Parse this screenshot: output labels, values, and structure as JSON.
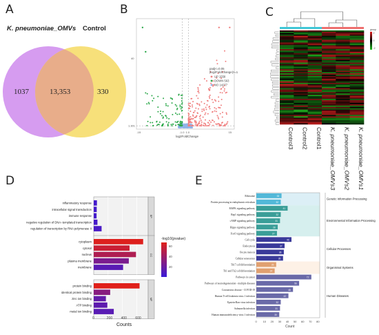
{
  "panel_labels": {
    "a": "A",
    "b": "B",
    "c": "C",
    "d": "D",
    "e": "E"
  },
  "colors": {
    "venn_left": "#d69cf0",
    "venn_right": "#f7e07a",
    "venn_overlap": "#e8ad8a",
    "volcano_up": "#f08080",
    "volcano_down": "#2ca84a",
    "volcano_ns": "#8fb4e8",
    "heat_low": "#20c020",
    "heat_mid": "#000000",
    "heat_high": "#e02020",
    "group_control": "#40c8d8",
    "group_treat": "#f07070",
    "go_grad_high": "#e0201a",
    "go_grad_low": "#3a1ad8"
  },
  "chart_data": [
    {
      "panel": "A",
      "type": "venn",
      "sets": [
        "K. pneumoniae_OMVs",
        "Control"
      ],
      "only_left": "1037",
      "overlap": "13,353",
      "only_right": "330"
    },
    {
      "panel": "B",
      "type": "scatter",
      "subtype": "volcano",
      "xlabel": "log2FoldChange",
      "ylabel": "",
      "xlim": [
        -16,
        16
      ],
      "legend_title": [
        "padj<=0.05",
        "|log2FoldChange|>=1"
      ],
      "legend": [
        {
          "name": "UP 1558",
          "color": "#f08080"
        },
        {
          "name": "DOWN 563",
          "color": "#2ca84a"
        },
        {
          "name": "NO 14277",
          "color": "#8fb4e8"
        }
      ],
      "y_tick_labels": [
        "40",
        "1.301"
      ],
      "x_tick_labels": [
        "-15",
        "-1.0",
        "1.0",
        "15"
      ]
    },
    {
      "panel": "C",
      "type": "heatmap",
      "columns": [
        "Control3",
        "Control2",
        "Control1",
        "K. pneumoniae_OMVs3",
        "K. pneumoniae_OMVs2",
        "K. pneumoniae_OMVs1"
      ],
      "colorbar_title": "group",
      "colorbar_ticks": [
        "2",
        "0",
        "-2"
      ]
    },
    {
      "panel": "D",
      "type": "bar",
      "orientation": "horizontal",
      "xlabel": "Counts",
      "x_ticks": [
        "0",
        "200",
        "400",
        "600"
      ],
      "xlim": [
        0,
        760
      ],
      "colorbar_title": "-log10(pvalue)",
      "colorbar_ticks": [
        "60",
        "40",
        "20"
      ],
      "groups": [
        {
          "name": "BP",
          "terms": [
            {
              "label": "inflammatory response",
              "value": 45,
              "logp": 4
            },
            {
              "label": "intracellular signal transduction",
              "value": 42,
              "logp": 4
            },
            {
              "label": "immune response",
              "value": 40,
              "logp": 4
            },
            {
              "label": "negative regulation of DNA−templated transcription",
              "value": 52,
              "logp": 5
            },
            {
              "label": "regulation of transcription by RNA polymerase II",
              "value": 110,
              "logp": 6
            }
          ]
        },
        {
          "name": "CC",
          "terms": [
            {
              "label": "cytoplasm",
              "value": 690,
              "logp": 63
            },
            {
              "label": "cytosol",
              "value": 500,
              "logp": 55
            },
            {
              "label": "nucleus",
              "value": 590,
              "logp": 45
            },
            {
              "label": "plasma membrane",
              "value": 490,
              "logp": 25
            },
            {
              "label": "membrane",
              "value": 410,
              "logp": 12
            }
          ]
        },
        {
          "name": "MF",
          "terms": [
            {
              "label": "protein binding",
              "value": 640,
              "logp": 64
            },
            {
              "label": "identical protein binding",
              "value": 230,
              "logp": 30
            },
            {
              "label": "zinc ion binding",
              "value": 170,
              "logp": 16
            },
            {
              "label": "ATP binding",
              "value": 190,
              "logp": 14
            },
            {
              "label": "metal ion binding",
              "value": 280,
              "logp": 12
            }
          ]
        }
      ]
    },
    {
      "panel": "E",
      "type": "bar",
      "orientation": "horizontal",
      "xlabel": "Count",
      "x_ticks": [
        "0",
        "10",
        "20",
        "30",
        "40",
        "50",
        "60",
        "70",
        "80"
      ],
      "xlim": [
        0,
        83
      ],
      "categories": [
        "Genetic Information Processing",
        "Environmental Information Processing",
        "Cellular Processes",
        "Organismal Systems",
        "Human Diseases"
      ],
      "terms": [
        {
          "label": "Ribosome",
          "value": 33,
          "category": 0
        },
        {
          "label": "Protein processing in endoplasmic reticulum",
          "value": 32,
          "category": 0
        },
        {
          "label": "MAPK signaling pathway",
          "value": 41,
          "category": 1
        },
        {
          "label": "Rap1 signaling pathway",
          "value": 32,
          "category": 1
        },
        {
          "label": "cAMP signaling pathway",
          "value": 31,
          "category": 1
        },
        {
          "label": "Hippo signaling pathway",
          "value": 28,
          "category": 1
        },
        {
          "label": "FoxO signaling pathway",
          "value": 27,
          "category": 1
        },
        {
          "label": "Cell cycle",
          "value": 46,
          "category": 2
        },
        {
          "label": "Endocytosis",
          "value": 37,
          "category": 2
        },
        {
          "label": "Oocyte meiosis",
          "value": 36,
          "category": 2
        },
        {
          "label": "Cellular senescence",
          "value": 35,
          "category": 2
        },
        {
          "label": "Th17 cell differentiation",
          "value": 26,
          "category": 3
        },
        {
          "label": "Th1 and Th2 cell differentiation",
          "value": 24,
          "category": 3
        },
        {
          "label": "Pathways in cancer",
          "value": 72,
          "category": 4
        },
        {
          "label": "Pathways of neurodegeneration - multiple diseases",
          "value": 56,
          "category": 4
        },
        {
          "label": "Coronavirus disease - COVID-19",
          "value": 48,
          "category": 4
        },
        {
          "label": "Human T-cell leukemia virus 1 infection",
          "value": 42,
          "category": 4
        },
        {
          "label": "Epstein-Barr virus infection",
          "value": 32,
          "category": 4
        },
        {
          "label": "Salmonella infection",
          "value": 31,
          "category": 4
        },
        {
          "label": "Human immunodeficiency virus 1 infection",
          "value": 30,
          "category": 4
        }
      ]
    }
  ]
}
